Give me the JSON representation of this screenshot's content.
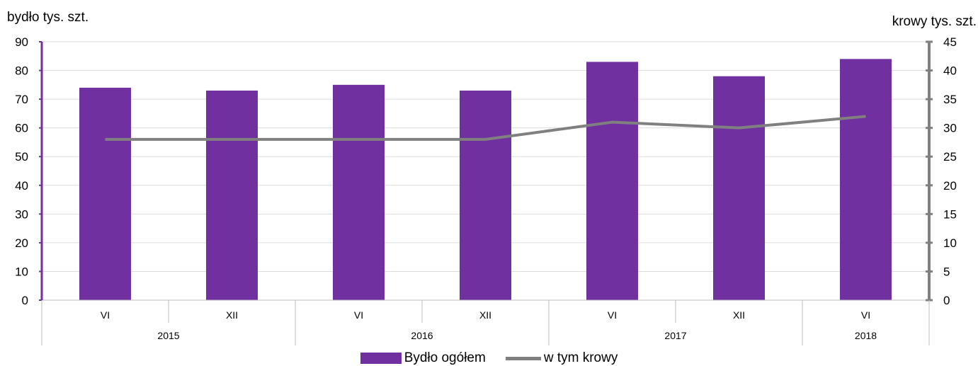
{
  "chart_data": {
    "type": "bar+line",
    "y_left_label": "bydło tys. szt.",
    "y_right_label": "krowy tys. szt.",
    "y_left_lim": [
      0,
      90
    ],
    "y_left_ticks": [
      0,
      10,
      20,
      30,
      40,
      50,
      60,
      70,
      80,
      90
    ],
    "y_right_lim": [
      0,
      45
    ],
    "y_right_ticks": [
      0,
      5,
      10,
      15,
      20,
      25,
      30,
      35,
      40,
      45
    ],
    "categories": [
      "VI",
      "XII",
      "VI",
      "XII",
      "VI",
      "XII",
      "VI"
    ],
    "groups": [
      {
        "label": "2015",
        "count": 2
      },
      {
        "label": "2016",
        "count": 2
      },
      {
        "label": "2017",
        "count": 2
      },
      {
        "label": "2018",
        "count": 1
      }
    ],
    "series": [
      {
        "name": "Bydło ogółem",
        "type": "bar",
        "axis": "left",
        "color": "#7030A0",
        "values": [
          74,
          73,
          75,
          73,
          83,
          78,
          84
        ]
      },
      {
        "name": "w tym krowy",
        "type": "line",
        "axis": "right",
        "color": "#808080",
        "values": [
          28,
          28,
          28,
          28,
          31,
          30,
          32
        ]
      }
    ],
    "grid": true,
    "legend_position": "bottom"
  }
}
